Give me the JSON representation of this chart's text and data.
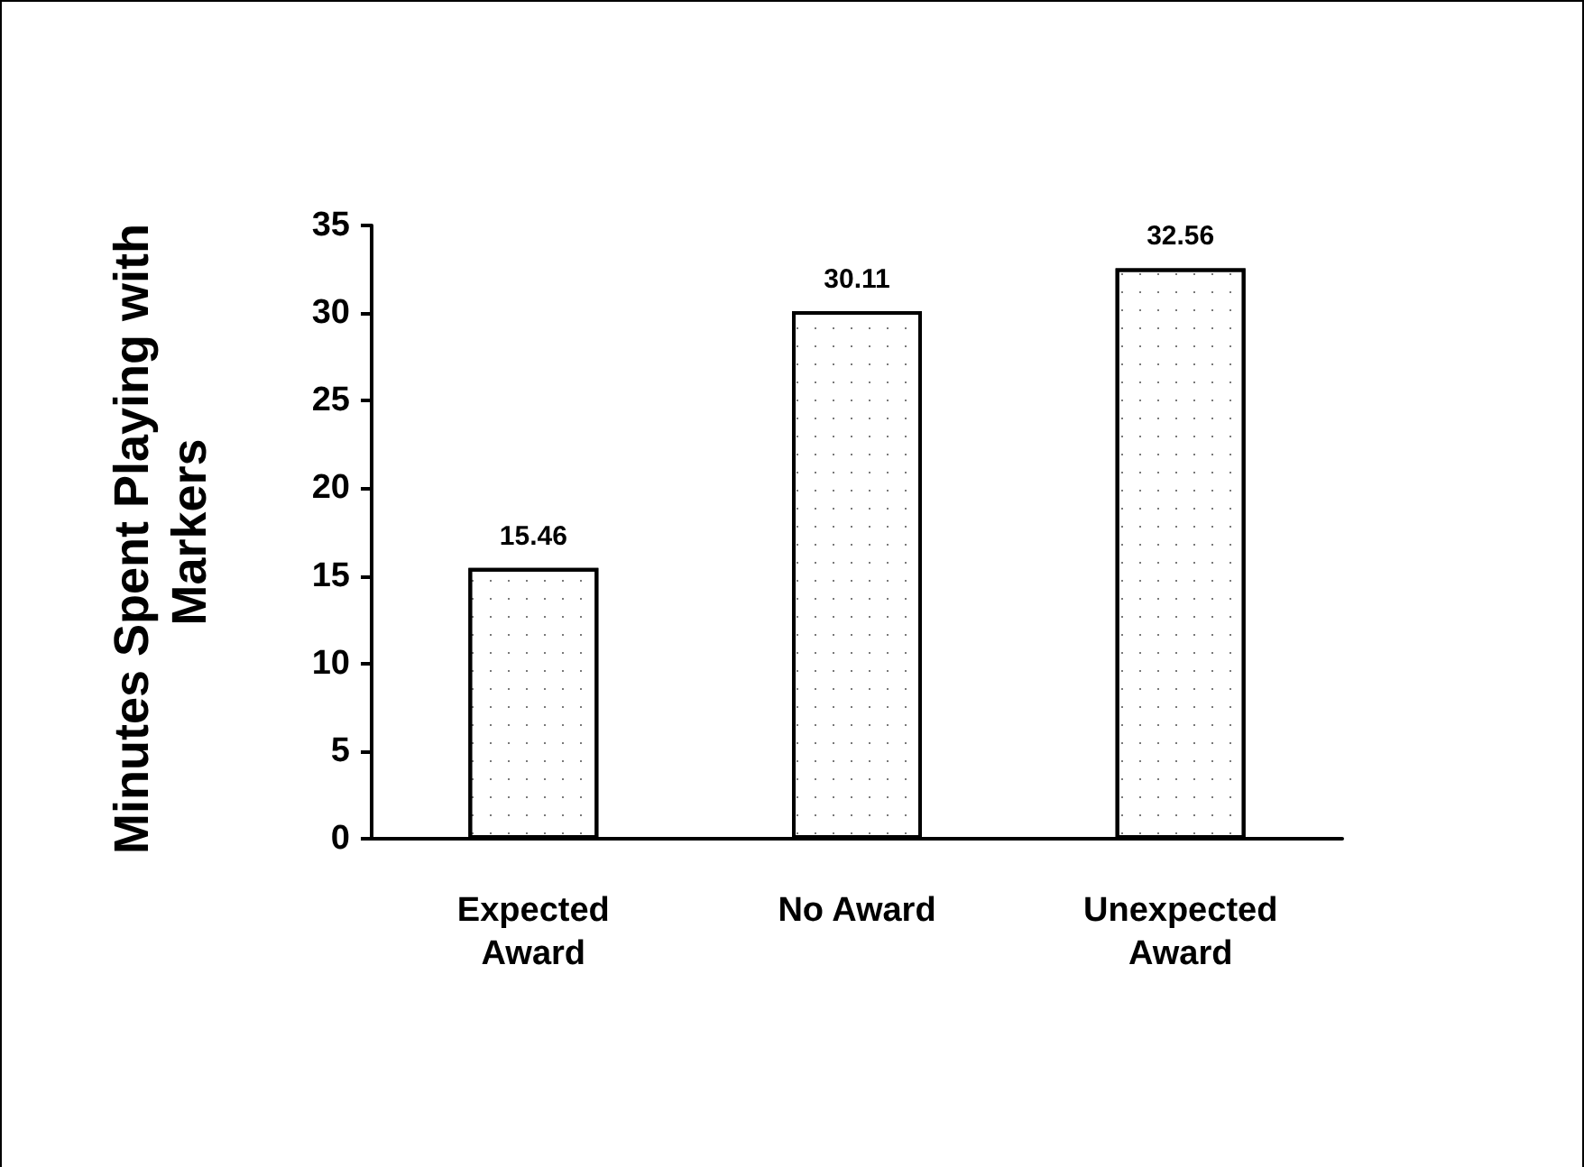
{
  "chart_data": {
    "type": "bar",
    "ylabel": "Minutes Spent Playing with Markers",
    "categories": [
      "Expected\nAward",
      "No Award",
      "Unexpected\nAward"
    ],
    "values": [
      15.46,
      30.11,
      32.56
    ],
    "color": "#ffffff",
    "ylim": [
      0,
      35
    ],
    "yticks": [
      0,
      5,
      10,
      15,
      20,
      25,
      30,
      35
    ],
    "grid": false,
    "data_labels": true
  }
}
